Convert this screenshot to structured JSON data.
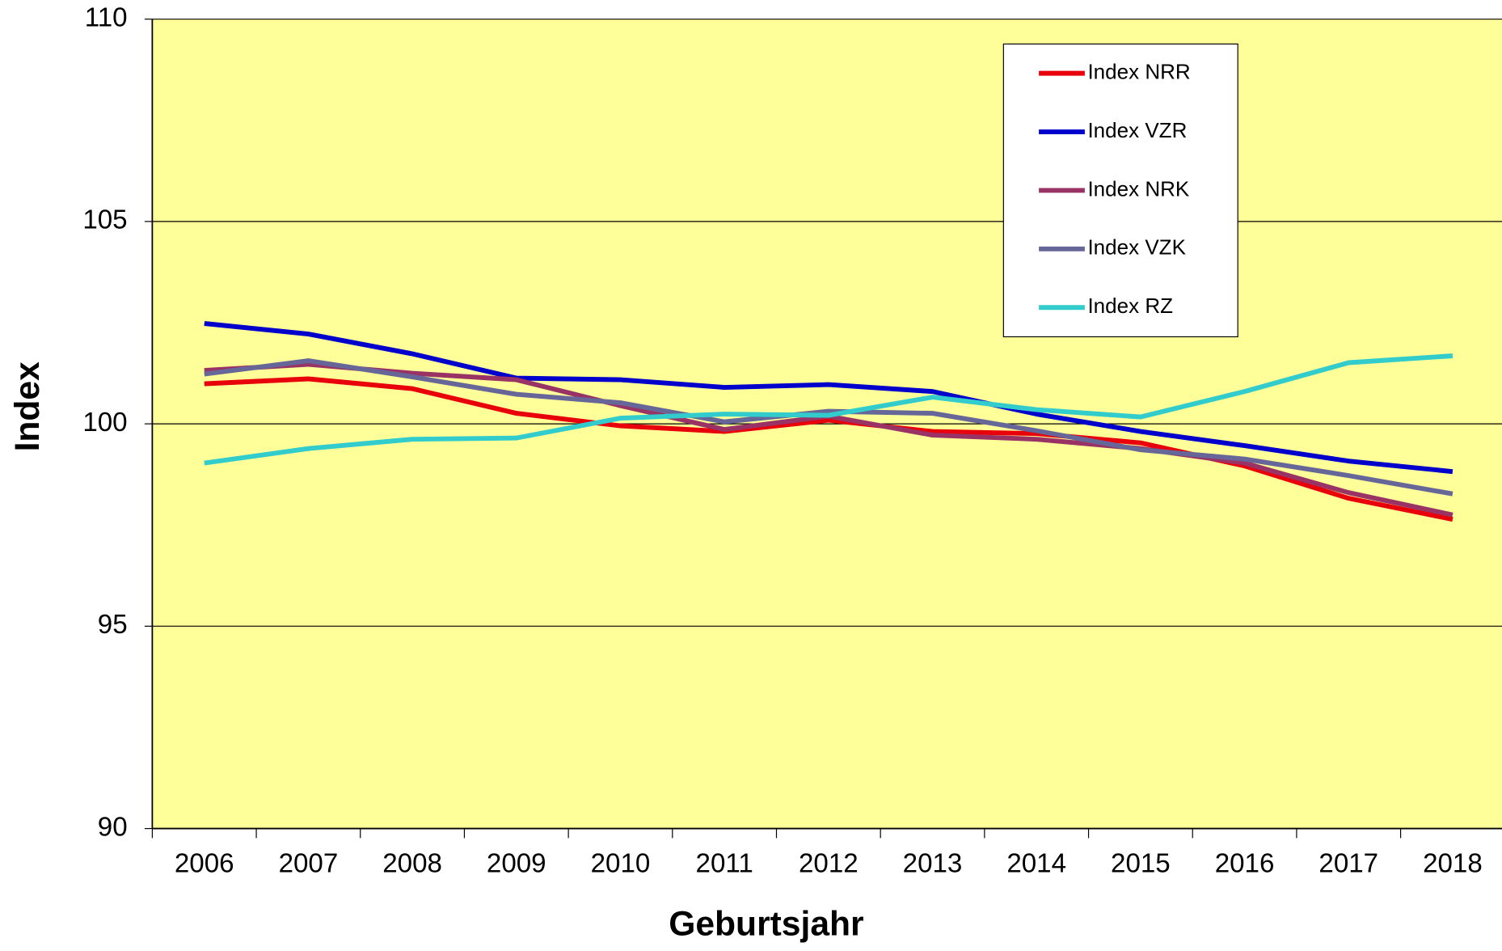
{
  "chart_data": {
    "type": "line",
    "x_label": "Geburtsjahr",
    "y_label": "Index",
    "categories": [
      "2006",
      "2007",
      "2008",
      "2009",
      "2010",
      "2011",
      "2012",
      "2013",
      "2014",
      "2015",
      "2016",
      "2017",
      "2018"
    ],
    "series": [
      {
        "name": "Index NRR",
        "color": "#e8000b",
        "values": [
          100.99,
          101.11,
          100.87,
          100.26,
          99.95,
          99.81,
          100.09,
          99.81,
          99.76,
          99.53,
          98.96,
          98.16,
          97.64
        ]
      },
      {
        "name": "Index VZR",
        "color": "#0000cc",
        "values": [
          102.48,
          102.22,
          101.73,
          101.13,
          101.09,
          100.9,
          100.97,
          100.8,
          100.24,
          99.81,
          99.46,
          99.08,
          98.82
        ]
      },
      {
        "name": "Index NRK",
        "color": "#993366",
        "values": [
          101.32,
          101.47,
          101.25,
          101.09,
          100.45,
          99.86,
          100.19,
          99.72,
          99.62,
          99.39,
          99.03,
          98.3,
          97.75
        ]
      },
      {
        "name": "Index VZK",
        "color": "#666699",
        "values": [
          101.23,
          101.56,
          101.16,
          100.73,
          100.52,
          100.05,
          100.31,
          100.26,
          99.83,
          99.36,
          99.13,
          98.72,
          98.27
        ]
      },
      {
        "name": "Index RZ",
        "color": "#33cccc",
        "values": [
          99.03,
          99.39,
          99.62,
          99.65,
          100.14,
          100.24,
          100.21,
          100.66,
          100.35,
          100.17,
          100.8,
          101.51,
          101.68
        ]
      }
    ],
    "ylim": [
      90,
      110
    ],
    "yticks": [
      90,
      95,
      100,
      105,
      110
    ],
    "grid": true,
    "background": "#ffff99",
    "legend": "upper right"
  }
}
